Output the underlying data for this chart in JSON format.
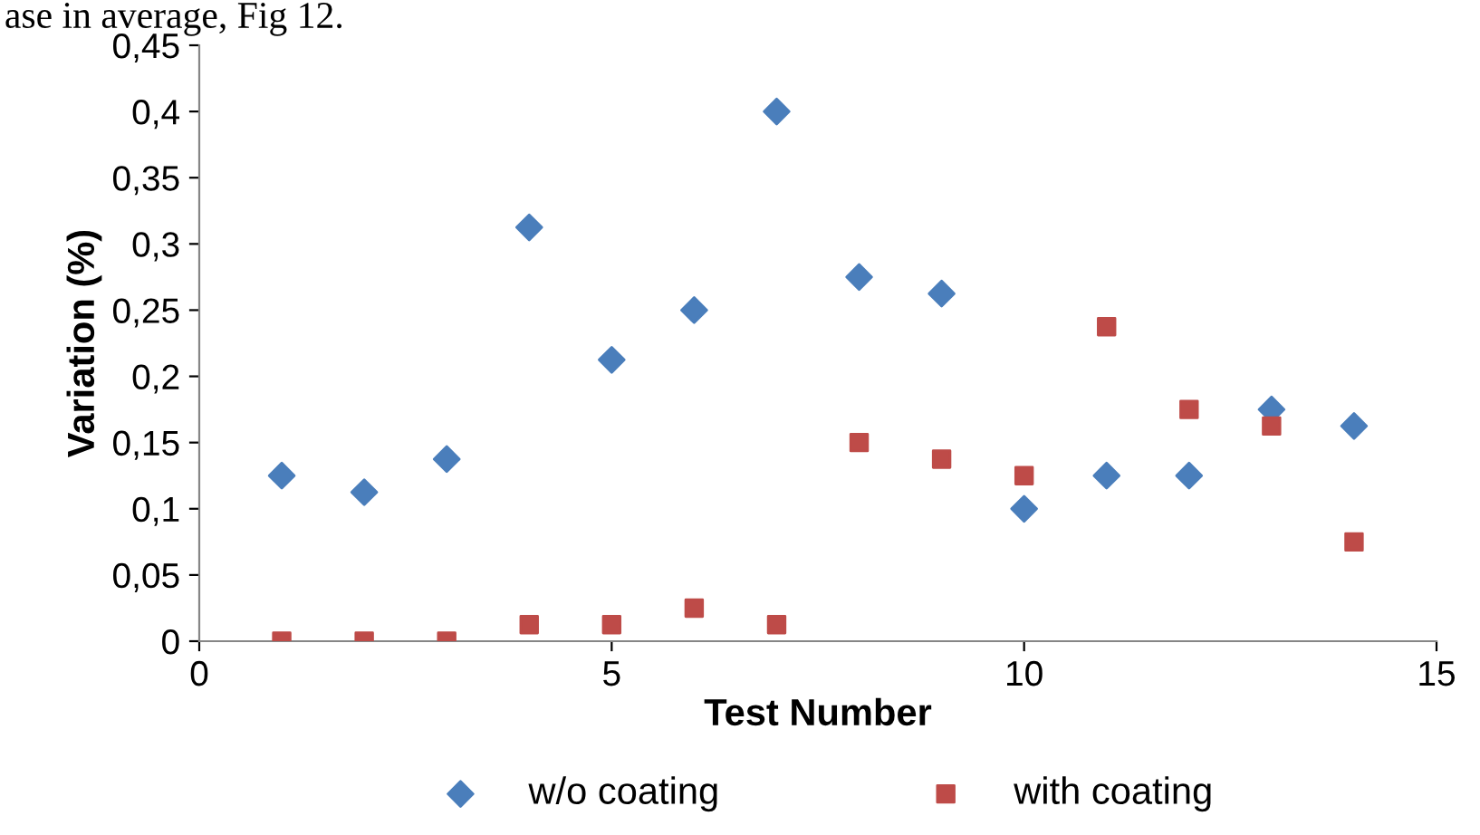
{
  "chart_data": {
    "type": "scatter",
    "xlabel": "Test Number",
    "ylabel": "Variation (%)",
    "annotations": [
      "ase in average, Fig 12."
    ],
    "x": [
      1,
      2,
      3,
      4,
      5,
      6,
      7,
      8,
      9,
      10,
      11,
      12,
      13,
      14
    ],
    "series": [
      {
        "name": "w/o coating",
        "color": "#4a7ebb",
        "marker": "diamond",
        "values": [
          0.125,
          0.1125,
          0.1375,
          0.3125,
          0.2125,
          0.25,
          0.4,
          0.275,
          0.2625,
          0.1,
          0.125,
          0.125,
          0.175,
          0.1625
        ]
      },
      {
        "name": "with coating",
        "color": "#be4b48",
        "marker": "square",
        "values": [
          0,
          0,
          0,
          0.0125,
          0.0125,
          0.025,
          0.0125,
          0.15,
          0.1375,
          0.125,
          0.2375,
          0.175,
          0.1625,
          0.075
        ]
      }
    ],
    "xlim": [
      0,
      15
    ],
    "xticks": [
      0,
      5,
      10,
      15
    ],
    "ylim": [
      0,
      0.45
    ],
    "yticks": [
      0,
      {
        "value": 0.05,
        "label": "0,05"
      },
      {
        "value": 0.1,
        "label": "0,1"
      },
      {
        "value": 0.15,
        "label": "0,15"
      },
      {
        "value": 0.2,
        "label": "0,2"
      },
      {
        "value": 0.25,
        "label": "0,25"
      },
      {
        "value": 0.3,
        "label": "0,3"
      },
      {
        "value": 0.35,
        "label": "0,35"
      },
      {
        "value": 0.4,
        "label": "0,4"
      },
      {
        "value": 0.45,
        "label": "0,45"
      }
    ],
    "grid": false,
    "legend": "bottom"
  }
}
